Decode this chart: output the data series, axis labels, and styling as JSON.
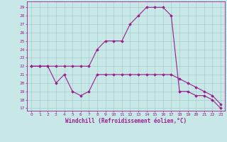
{
  "x": [
    0,
    1,
    2,
    3,
    4,
    5,
    6,
    7,
    8,
    9,
    10,
    11,
    12,
    13,
    14,
    15,
    16,
    17,
    18,
    19,
    20,
    21,
    22,
    23
  ],
  "temp": [
    22,
    22,
    22,
    22,
    22,
    22,
    22,
    22,
    24,
    25,
    25,
    25,
    27,
    28,
    29,
    29,
    29,
    28,
    19,
    19,
    18.5,
    18.5,
    18,
    17
  ],
  "windchill": [
    22,
    22,
    22,
    20,
    21,
    19,
    18.5,
    19,
    21,
    21,
    21,
    21,
    21,
    21,
    21,
    21,
    21,
    21,
    20.5,
    20,
    19.5,
    19,
    18.5,
    17.5
  ],
  "line_color": "#9B1D8C",
  "bg_color": "#C8E8E8",
  "grid_color": "#A8CCCC",
  "ylabel_values": [
    17,
    18,
    19,
    20,
    21,
    22,
    23,
    24,
    25,
    26,
    27,
    28,
    29
  ],
  "xlabel_values": [
    0,
    1,
    2,
    3,
    4,
    5,
    6,
    7,
    8,
    9,
    10,
    11,
    12,
    13,
    14,
    15,
    16,
    17,
    18,
    19,
    20,
    21,
    22,
    23
  ],
  "xlabel": "Windchill (Refroidissement éolien,°C)",
  "ylim": [
    16.7,
    29.7
  ],
  "xlim": [
    -0.5,
    23.5
  ]
}
